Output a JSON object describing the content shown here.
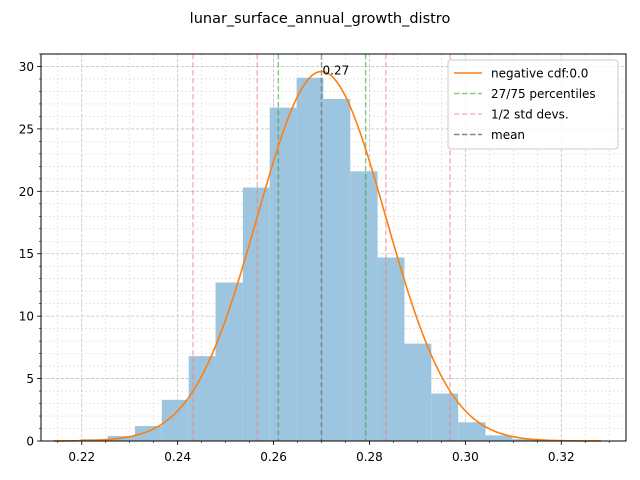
{
  "chart_data": {
    "type": "bar",
    "title": "lunar_surface_annual_growth_distro",
    "xlabel": "",
    "ylabel": "",
    "xlim": [
      0.2115,
      0.3335
    ],
    "ylim": [
      0,
      31
    ],
    "xticks": [
      0.22,
      0.24,
      0.26,
      0.28,
      0.3,
      0.32
    ],
    "xtick_labels": [
      "0.22",
      "0.24",
      "0.26",
      "0.28",
      "0.30",
      "0.32"
    ],
    "yticks": [
      0,
      5,
      10,
      15,
      20,
      25,
      30
    ],
    "ytick_labels": [
      "0",
      "5",
      "10",
      "15",
      "20",
      "25",
      "30"
    ],
    "grid": true,
    "legend_position": "top-right",
    "histogram": {
      "color": "#9ec5df",
      "bin_edges": [
        0.2142,
        0.2198,
        0.2254,
        0.2311,
        0.2367,
        0.2423,
        0.2479,
        0.2536,
        0.2592,
        0.2648,
        0.2704,
        0.276,
        0.2817,
        0.2873,
        0.2929,
        0.2985,
        0.3042,
        0.3098,
        0.3154,
        0.321,
        0.3266
      ],
      "counts": [
        0.05,
        0.15,
        0.4,
        1.2,
        3.3,
        6.8,
        12.7,
        20.3,
        26.7,
        29.1,
        27.4,
        21.6,
        14.7,
        7.8,
        3.8,
        1.5,
        0.45,
        0.15,
        0.05,
        0.02
      ]
    },
    "series": [
      {
        "name": "negative cdf:0.0",
        "kind": "normal-pdf-curve",
        "color": "#ff7f0e",
        "mean": 0.27,
        "std": 0.0134,
        "peak": 29.6,
        "x_range": [
          0.2142,
          0.3283
        ]
      }
    ],
    "vlines": [
      {
        "label": "27/75 percentiles",
        "color": "#2ca02c",
        "x": [
          0.261,
          0.2792
        ]
      },
      {
        "label": "1/2 std devs.",
        "color": "#f08080",
        "x": [
          0.2566,
          0.2834,
          0.2432,
          0.2968
        ]
      },
      {
        "label": "mean",
        "color": "#555555",
        "x": [
          0.27
        ]
      }
    ],
    "annotations": [
      {
        "text": "0.27",
        "x": 0.27,
        "y": 29.6
      }
    ]
  }
}
